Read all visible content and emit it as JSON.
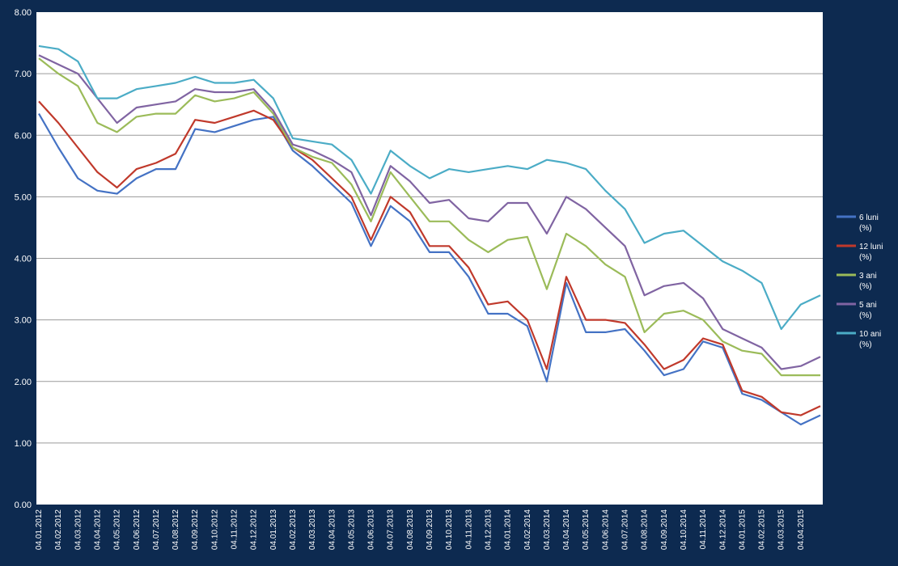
{
  "chart_data": {
    "type": "line",
    "title": "",
    "xlabel": "",
    "ylabel": "",
    "ylim": [
      0,
      8
    ],
    "y_ticks": [
      "0.00",
      "1.00",
      "2.00",
      "3.00",
      "4.00",
      "5.00",
      "6.00",
      "7.00",
      "8.00"
    ],
    "x_ticks": [
      "04.01.2012",
      "04.02.2012",
      "04.03.2012",
      "04.04.2012",
      "04.05.2012",
      "04.06.2012",
      "04.07.2012",
      "04.08.2012",
      "04.09.2012",
      "04.10.2012",
      "04.11.2012",
      "04.12.2012",
      "04.01.2013",
      "04.02.2013",
      "04.03.2013",
      "04.04.2013",
      "04.05.2013",
      "04.06.2013",
      "04.07.2013",
      "04.08.2013",
      "04.09.2013",
      "04.10.2013",
      "04.11.2013",
      "04.12.2013",
      "04.01.2014",
      "04.02.2014",
      "04.03.2014",
      "04.04.2014",
      "04.05.2014",
      "04.06.2014",
      "04.07.2014",
      "04.08.2014",
      "04.09.2014",
      "04.10.2014",
      "04.11.2014",
      "04.12.2014",
      "04.01.2015",
      "04.02.2015",
      "04.03.2015",
      "04.04.2015"
    ],
    "grid": "horizontal",
    "legend_position": "right",
    "x": [
      "2012-01",
      "2012-02",
      "2012-03",
      "2012-04",
      "2012-05",
      "2012-06",
      "2012-07",
      "2012-08",
      "2012-09",
      "2012-10",
      "2012-11",
      "2012-12",
      "2013-01",
      "2013-02",
      "2013-03",
      "2013-04",
      "2013-05",
      "2013-06",
      "2013-07",
      "2013-08",
      "2013-09",
      "2013-10",
      "2013-11",
      "2013-12",
      "2014-01",
      "2014-02",
      "2014-03",
      "2014-04",
      "2014-05",
      "2014-06",
      "2014-07",
      "2014-08",
      "2014-09",
      "2014-10",
      "2014-11",
      "2014-12",
      "2015-01",
      "2015-02",
      "2015-03",
      "2015-04",
      "2015-05"
    ],
    "series": [
      {
        "name": "6 luni\n(%)",
        "color": "#4472c4",
        "values": [
          6.35,
          5.8,
          5.3,
          5.1,
          5.05,
          5.3,
          5.45,
          5.45,
          6.1,
          6.05,
          6.15,
          6.25,
          6.3,
          5.75,
          5.5,
          5.2,
          4.9,
          4.2,
          4.85,
          4.6,
          4.1,
          4.1,
          3.7,
          3.1,
          3.1,
          2.9,
          2.0,
          3.6,
          2.8,
          2.8,
          2.85,
          2.5,
          2.1,
          2.2,
          2.65,
          2.55,
          1.8,
          1.7,
          1.5,
          1.3,
          1.45
        ]
      },
      {
        "name": "12 luni\n(%)",
        "color": "#c0392b",
        "values": [
          6.55,
          6.2,
          5.8,
          5.4,
          5.15,
          5.45,
          5.55,
          5.7,
          6.25,
          6.2,
          6.3,
          6.4,
          6.25,
          5.8,
          5.6,
          5.3,
          5.0,
          4.3,
          5.0,
          4.75,
          4.2,
          4.2,
          3.85,
          3.25,
          3.3,
          3.0,
          2.2,
          3.7,
          3.0,
          3.0,
          2.95,
          2.6,
          2.2,
          2.35,
          2.7,
          2.6,
          1.85,
          1.75,
          1.5,
          1.45,
          1.6
        ]
      },
      {
        "name": "3 ani\n(%)",
        "color": "#9bbb59",
        "values": [
          7.25,
          7.0,
          6.8,
          6.2,
          6.05,
          6.3,
          6.35,
          6.35,
          6.65,
          6.55,
          6.6,
          6.7,
          6.35,
          5.8,
          5.65,
          5.55,
          5.2,
          4.6,
          5.4,
          5.0,
          4.6,
          4.6,
          4.3,
          4.1,
          4.3,
          4.35,
          3.5,
          4.4,
          4.2,
          3.9,
          3.7,
          2.8,
          3.1,
          3.15,
          3.0,
          2.65,
          2.5,
          2.45,
          2.1,
          2.1,
          2.1
        ]
      },
      {
        "name": "5 ani\n(%)",
        "color": "#8064a2",
        "values": [
          7.3,
          7.15,
          7.0,
          6.6,
          6.2,
          6.45,
          6.5,
          6.55,
          6.75,
          6.7,
          6.7,
          6.75,
          6.4,
          5.85,
          5.75,
          5.6,
          5.4,
          4.7,
          5.5,
          5.25,
          4.9,
          4.95,
          4.65,
          4.6,
          4.9,
          4.9,
          4.4,
          5.0,
          4.8,
          4.5,
          4.2,
          3.4,
          3.55,
          3.6,
          3.35,
          2.85,
          2.7,
          2.55,
          2.2,
          2.25,
          2.4
        ]
      },
      {
        "name": "10 ani\n(%)",
        "color": "#4bacc6",
        "values": [
          7.45,
          7.4,
          7.2,
          6.6,
          6.6,
          6.75,
          6.8,
          6.85,
          6.95,
          6.85,
          6.85,
          6.9,
          6.6,
          5.95,
          5.9,
          5.85,
          5.6,
          5.05,
          5.75,
          5.5,
          5.3,
          5.45,
          5.4,
          5.45,
          5.5,
          5.45,
          5.6,
          5.55,
          5.45,
          5.1,
          4.8,
          4.25,
          4.4,
          4.45,
          4.2,
          3.95,
          3.8,
          3.6,
          2.85,
          3.25,
          3.4
        ]
      }
    ]
  }
}
